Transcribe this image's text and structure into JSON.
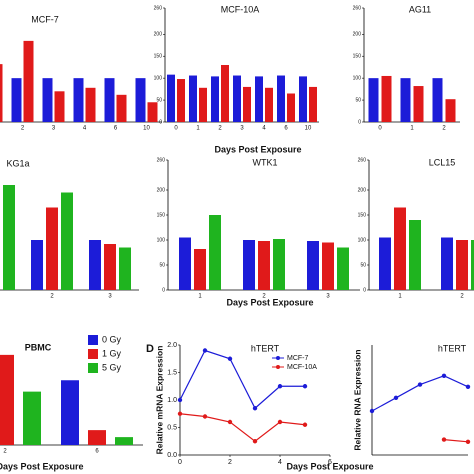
{
  "chart_data": [
    {
      "type": "bar",
      "title": "MCF-7",
      "categories": [
        null,
        "2",
        "3",
        "4",
        "6",
        "10"
      ],
      "series": [
        {
          "color": "#1c1cd8",
          "values": [
            null,
            100,
            100,
            100,
            100,
            100
          ]
        },
        {
          "color": "#e01a1a",
          "values": [
            132,
            185,
            70,
            78,
            62,
            45
          ]
        }
      ],
      "ylim": [
        0,
        260
      ]
    },
    {
      "type": "bar",
      "title": "MCF-10A",
      "categories": [
        "0",
        "1",
        "2",
        "3",
        "4",
        "6",
        "10"
      ],
      "series": [
        {
          "color": "#1c1cd8",
          "values": [
            108,
            106,
            104,
            106,
            104,
            106,
            104
          ]
        },
        {
          "color": "#e01a1a",
          "values": [
            98,
            78,
            130,
            80,
            78,
            65,
            80
          ]
        }
      ],
      "ylim": [
        0,
        260
      ],
      "yticks": [
        0,
        50,
        100,
        150,
        200,
        260
      ],
      "xlabel": "Days Post Exposure"
    },
    {
      "type": "bar",
      "title": "AG11",
      "categories": [
        "0",
        "1",
        "2"
      ],
      "series": [
        {
          "color": "#1c1cd8",
          "values": [
            100,
            100,
            100
          ]
        },
        {
          "color": "#e01a1a",
          "values": [
            105,
            82,
            52
          ]
        }
      ],
      "ylim": [
        0,
        260
      ],
      "yticks": [
        0,
        50,
        100,
        150,
        200,
        260
      ]
    },
    {
      "type": "bar",
      "title": "KG1a",
      "categories": [
        null,
        "2",
        "3"
      ],
      "series": [
        {
          "color": "#1c1cd8",
          "values": [
            null,
            100,
            100
          ]
        },
        {
          "color": "#e01a1a",
          "values": [
            null,
            165,
            92
          ]
        },
        {
          "color": "#1fb41f",
          "values": [
            210,
            195,
            85
          ]
        }
      ],
      "ylim": [
        0,
        260
      ]
    },
    {
      "type": "bar",
      "title": "WTK1",
      "categories": [
        "1",
        "2",
        "3"
      ],
      "series": [
        {
          "color": "#1c1cd8",
          "values": [
            105,
            100,
            98
          ]
        },
        {
          "color": "#e01a1a",
          "values": [
            82,
            98,
            95
          ]
        },
        {
          "color": "#1fb41f",
          "values": [
            150,
            102,
            85
          ]
        }
      ],
      "ylim": [
        0,
        260
      ],
      "yticks": [
        0,
        50,
        100,
        150,
        200,
        260
      ],
      "xlabel": "Days Post Exposure"
    },
    {
      "type": "bar",
      "title": "LCL15",
      "categories": [
        "1",
        "2"
      ],
      "series": [
        {
          "color": "#1c1cd8",
          "values": [
            105,
            105
          ]
        },
        {
          "color": "#e01a1a",
          "values": [
            165,
            100
          ]
        },
        {
          "color": "#1fb41f",
          "values": [
            140,
            100
          ]
        }
      ],
      "ylim": [
        0,
        260
      ],
      "yticks": [
        0,
        50,
        100,
        150,
        200,
        260
      ]
    },
    {
      "type": "bar",
      "title": "PBMC",
      "categories": [
        "2",
        "6"
      ],
      "series": [
        {
          "name": "0 Gy",
          "color": "#1c1cd8",
          "values": [
            null,
            74
          ]
        },
        {
          "name": "1 Gy",
          "color": "#e01a1a",
          "values": [
            103,
            17
          ]
        },
        {
          "name": "5 Gy",
          "color": "#1fb41f",
          "values": [
            61,
            9
          ]
        }
      ],
      "ylim": [
        0,
        120
      ],
      "xlabel": "Days Post Exposure"
    },
    {
      "type": "line",
      "panel_label": "D",
      "title": "hTERT",
      "ylabel": "Relative mRNA Expression",
      "xlabel": "Days Post Exposure",
      "x": [
        0,
        1,
        2,
        3,
        4,
        5
      ],
      "series": [
        {
          "name": "MCF-7",
          "color": "#1c1cd8",
          "values": [
            1.0,
            1.9,
            1.75,
            0.85,
            1.25,
            1.25
          ]
        },
        {
          "name": "MCF-10A",
          "color": "#e01a1a",
          "values": [
            0.75,
            0.7,
            0.6,
            0.25,
            0.6,
            0.55
          ]
        }
      ],
      "xlim": [
        0,
        6
      ],
      "xticks": [
        0,
        2,
        4,
        6
      ],
      "ylim": [
        0,
        2
      ],
      "yticks": [
        {
          "value": 0,
          "label": "0.0"
        },
        {
          "value": 0.5,
          "label": "0.5"
        },
        {
          "value": 1,
          "label": "1.0"
        },
        {
          "value": 1.5,
          "label": "1.5"
        },
        {
          "value": 2,
          "label": "2.0"
        }
      ]
    },
    {
      "type": "line",
      "title": "hTERT",
      "ylabel": "Relative RNA Expression",
      "x": [
        0,
        1,
        2,
        3,
        4
      ],
      "series": [
        {
          "color": "#1c1cd8",
          "values": [
            1.0,
            1.3,
            1.6,
            1.8,
            1.55
          ]
        },
        {
          "color": "#e01a1a",
          "values": [
            null,
            null,
            null,
            0.35,
            0.3
          ]
        }
      ],
      "xlim": [
        0,
        4
      ],
      "ylim": [
        0,
        2.5
      ]
    }
  ]
}
